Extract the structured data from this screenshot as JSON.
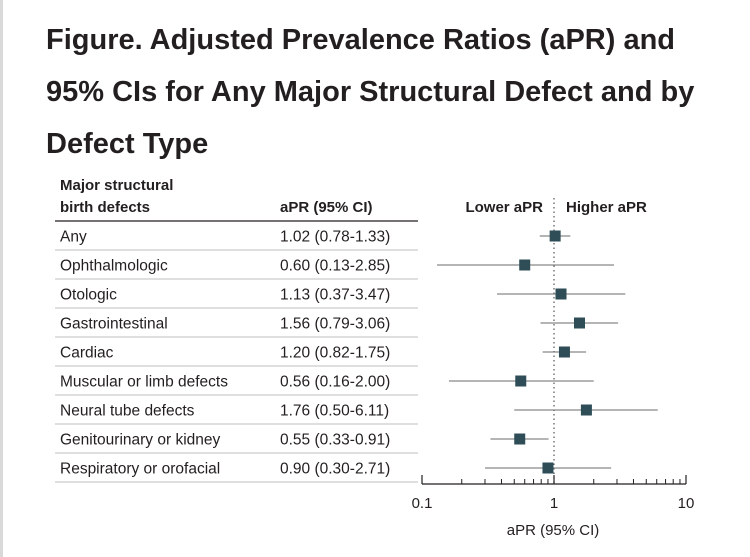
{
  "title_line1": "Figure.  Adjusted Prevalence Ratios (aPR) and",
  "title_line2": "95% CIs for Any Major Structural Defect and by",
  "title_line3": "Defect Type",
  "header": {
    "defect_line1": "Major structural",
    "defect_line2": "birth defects",
    "apr": "aPR (95% CI)",
    "lower": "Lower aPR",
    "higher": "Higher aPR"
  },
  "colors": {
    "marker": "#2e4d56",
    "text": "#231f20",
    "rule": "#bfbfbf",
    "whisker": "#6b6b6b"
  },
  "chart_data": {
    "type": "forest",
    "xscale": "log",
    "xlim": [
      0.1,
      10
    ],
    "xticks": [
      "0.1",
      "1",
      "10"
    ],
    "xlabel": "aPR (95% CI)",
    "reference_line": 1,
    "rows": [
      {
        "label": "Any",
        "ci_text": "1.02 (0.78-1.33)",
        "apr": 1.02,
        "lo": 0.78,
        "hi": 1.33
      },
      {
        "label": "Ophthalmologic",
        "ci_text": "0.60 (0.13-2.85)",
        "apr": 0.6,
        "lo": 0.13,
        "hi": 2.85
      },
      {
        "label": "Otologic",
        "ci_text": "1.13 (0.37-3.47)",
        "apr": 1.13,
        "lo": 0.37,
        "hi": 3.47
      },
      {
        "label": "Gastrointestinal",
        "ci_text": "1.56 (0.79-3.06)",
        "apr": 1.56,
        "lo": 0.79,
        "hi": 3.06
      },
      {
        "label": "Cardiac",
        "ci_text": "1.20 (0.82-1.75)",
        "apr": 1.2,
        "lo": 0.82,
        "hi": 1.75
      },
      {
        "label": "Muscular or limb defects",
        "ci_text": "0.56 (0.16-2.00)",
        "apr": 0.56,
        "lo": 0.16,
        "hi": 2.0
      },
      {
        "label": "Neural tube defects",
        "ci_text": "1.76 (0.50-6.11)",
        "apr": 1.76,
        "lo": 0.5,
        "hi": 6.11
      },
      {
        "label": "Genitourinary or kidney",
        "ci_text": "0.55 (0.33-0.91)",
        "apr": 0.55,
        "lo": 0.33,
        "hi": 0.91
      },
      {
        "label": "Respiratory or orofacial",
        "ci_text": "0.90 (0.30-2.71)",
        "apr": 0.9,
        "lo": 0.3,
        "hi": 2.71
      }
    ]
  }
}
